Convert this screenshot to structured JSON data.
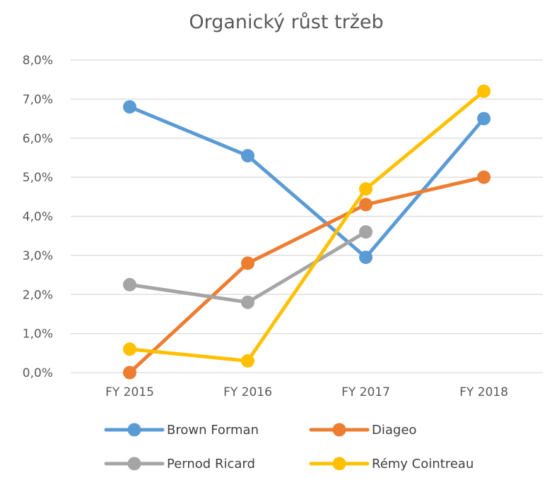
{
  "chart_data": {
    "type": "line",
    "title": "Organický růst tržeb",
    "xlabel": "",
    "ylabel": "",
    "categories": [
      "FY 2015",
      "FY 2016",
      "FY 2017",
      "FY 2018"
    ],
    "y_ticks": [
      "0,0%",
      "1,0%",
      "2,0%",
      "3,0%",
      "4,0%",
      "5,0%",
      "6,0%",
      "7,0%",
      "8,0%"
    ],
    "ylim": [
      0,
      8
    ],
    "grid": true,
    "legend_position": "bottom",
    "series": [
      {
        "name": "Brown Forman",
        "color": "#5B9BD5",
        "values": [
          6.8,
          5.55,
          2.95,
          6.5
        ]
      },
      {
        "name": "Diageo",
        "color": "#ED7D31",
        "values": [
          0.0,
          2.8,
          4.3,
          5.0
        ]
      },
      {
        "name": "Pernod Ricard",
        "color": "#A5A5A5",
        "values": [
          2.25,
          1.8,
          3.6,
          null
        ]
      },
      {
        "name": "Rémy Cointreau",
        "color": "#FFC000",
        "values": [
          0.6,
          0.3,
          4.7,
          7.2
        ]
      }
    ]
  }
}
